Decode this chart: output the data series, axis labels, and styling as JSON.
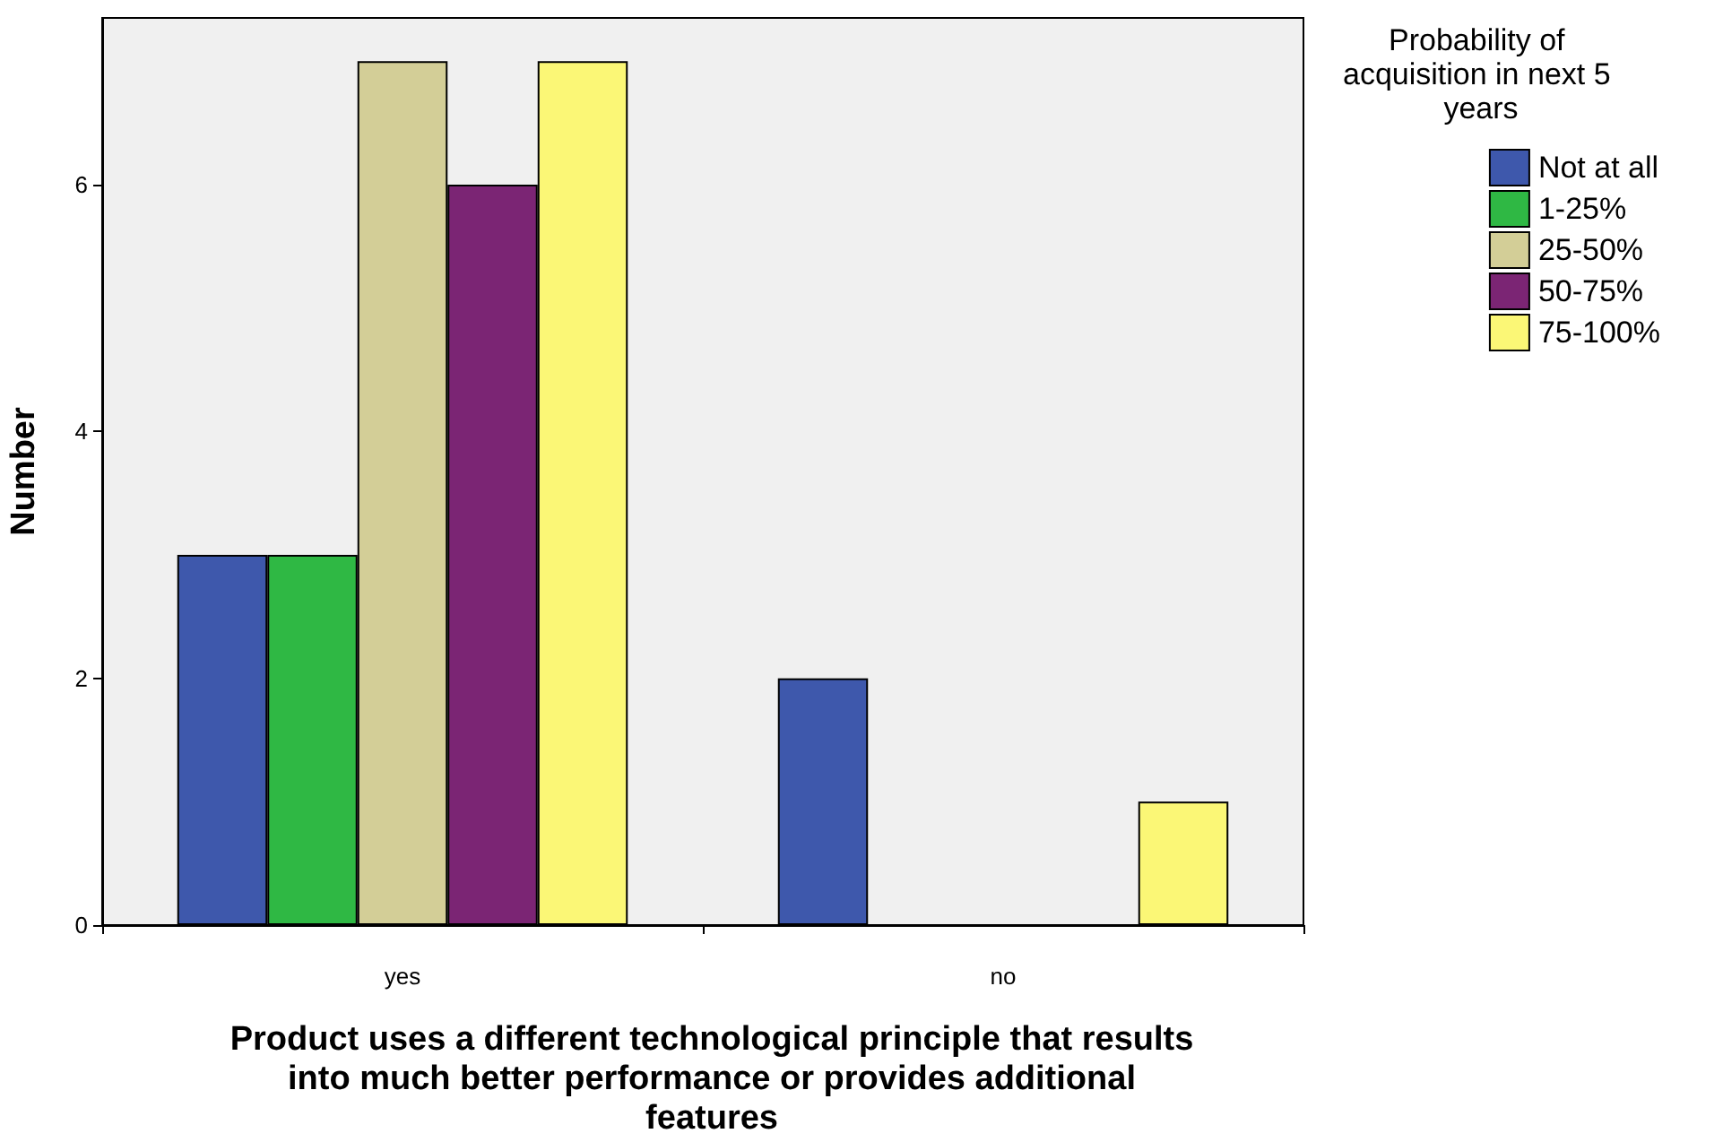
{
  "chart_data": {
    "type": "bar",
    "xlabel": "Product uses a different technological principle that results into much better performance or provides additional features",
    "ylabel": "Number",
    "legend_title": "Probability of acquisition in next 5 years",
    "categories": [
      "yes",
      "no"
    ],
    "series": [
      {
        "name": "Not at all",
        "color": "#3e58ac",
        "values": [
          3,
          2
        ]
      },
      {
        "name": "1-25%",
        "color": "#2fb844",
        "values": [
          3,
          0
        ]
      },
      {
        "name": "25-50%",
        "color": "#d3ce97",
        "values": [
          7,
          0
        ]
      },
      {
        "name": "50-75%",
        "color": "#7b2574",
        "values": [
          6,
          0
        ]
      },
      {
        "name": "75-100%",
        "color": "#fbf776",
        "values": [
          7,
          1
        ]
      }
    ],
    "ylim": [
      0,
      7.35
    ],
    "yticks": [
      0,
      2,
      4,
      6
    ],
    "grid": false,
    "legend": "top right"
  }
}
